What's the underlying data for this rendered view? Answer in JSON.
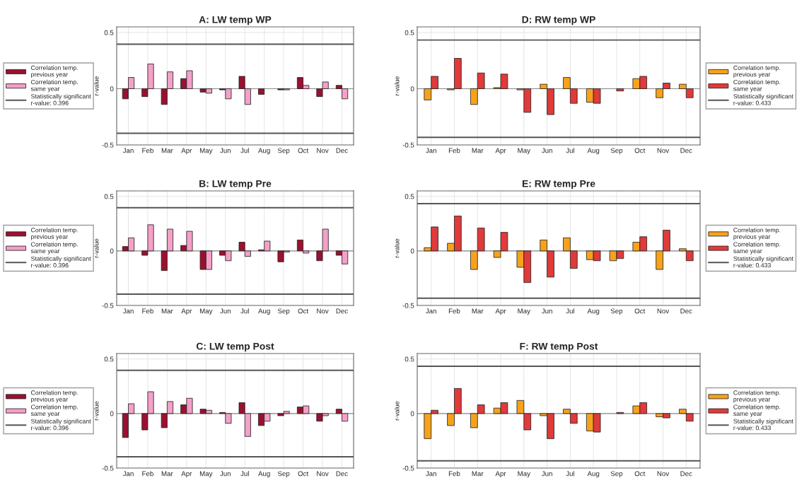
{
  "chart_data": [
    {
      "type": "bar",
      "title": "A: LW temp WP",
      "ylabel": "r-value",
      "categories": [
        "Jan",
        "Feb",
        "Mar",
        "Apr",
        "May",
        "Jun",
        "Jul",
        "Aug",
        "Sep",
        "Oct",
        "Nov",
        "Dec"
      ],
      "ylim": [
        -0.5,
        0.55
      ],
      "yticks": [
        -0.5,
        0,
        0.5
      ],
      "grid": true,
      "legend": "left",
      "series": [
        {
          "name": "Correlation temp.\nprevious year",
          "color": "#9b1030",
          "values": [
            -0.09,
            -0.07,
            -0.14,
            0.09,
            -0.03,
            -0.01,
            0.11,
            -0.05,
            -0.01,
            0.1,
            -0.07,
            0.03
          ]
        },
        {
          "name": "Correlation temp.\nsame year",
          "color": "#f4a0c8",
          "values": [
            0.1,
            0.22,
            0.15,
            0.16,
            -0.04,
            -0.09,
            -0.14,
            0,
            -0.01,
            0.03,
            0.06,
            -0.09
          ]
        }
      ],
      "ref_lines": [
        {
          "axis": "y",
          "value": 0.396,
          "label": "Statistically significant\nr-value: 0.396",
          "color": "#555555"
        },
        {
          "axis": "y",
          "value": -0.396,
          "color": "#555555"
        }
      ]
    },
    {
      "type": "bar",
      "title": "D: RW temp WP",
      "ylabel": "r-value",
      "categories": [
        "Jan",
        "Feb",
        "Mar",
        "Apr",
        "May",
        "Jun",
        "Jul",
        "Aug",
        "Sep",
        "Oct",
        "Nov",
        "Dec"
      ],
      "ylim": [
        -0.5,
        0.55
      ],
      "yticks": [
        -0.5,
        0,
        0.5
      ],
      "grid": true,
      "legend": "right",
      "series": [
        {
          "name": "Correlation temp.\nprevious year",
          "color": "#f7a21b",
          "values": [
            -0.1,
            -0.01,
            -0.14,
            0.01,
            -0.01,
            0.04,
            0.1,
            -0.12,
            0,
            0.09,
            -0.08,
            0.04
          ]
        },
        {
          "name": "Correlation temp.\nsame year",
          "color": "#e03a3a",
          "values": [
            0.11,
            0.27,
            0.14,
            0.13,
            -0.21,
            -0.23,
            -0.13,
            -0.13,
            -0.02,
            0.11,
            0.05,
            -0.08
          ]
        }
      ],
      "ref_lines": [
        {
          "axis": "y",
          "value": 0.433,
          "label": "Statistically significant\nr-value: 0.433",
          "color": "#555555"
        },
        {
          "axis": "y",
          "value": -0.433,
          "color": "#555555"
        }
      ]
    },
    {
      "type": "bar",
      "title": "B: LW temp Pre",
      "ylabel": "r-value",
      "categories": [
        "Jan",
        "Feb",
        "Mar",
        "Apr",
        "May",
        "Jun",
        "Jul",
        "Aug",
        "Sep",
        "Oct",
        "Nov",
        "Dec"
      ],
      "ylim": [
        -0.5,
        0.55
      ],
      "yticks": [
        -0.5,
        0,
        0.5
      ],
      "grid": true,
      "legend": "left",
      "series": [
        {
          "name": "Correlation temp.\nprevious year",
          "color": "#9b1030",
          "values": [
            0.04,
            -0.04,
            -0.18,
            0.05,
            -0.17,
            -0.04,
            0.08,
            0.01,
            -0.1,
            0.1,
            -0.09,
            -0.04
          ]
        },
        {
          "name": "Correlation temp.\nsame year",
          "color": "#f4a0c8",
          "values": [
            0.12,
            0.24,
            0.2,
            0.18,
            -0.17,
            -0.09,
            -0.05,
            0.09,
            -0.01,
            -0.02,
            0.2,
            -0.12
          ]
        }
      ],
      "ref_lines": [
        {
          "axis": "y",
          "value": 0.396,
          "label": "Statistically significant\nr-value: 0.396",
          "color": "#555555"
        },
        {
          "axis": "y",
          "value": -0.396,
          "color": "#555555"
        }
      ]
    },
    {
      "type": "bar",
      "title": "E: RW temp Pre",
      "ylabel": "r-value",
      "categories": [
        "Jan",
        "Feb",
        "Mar",
        "Apr",
        "May",
        "Jun",
        "Jul",
        "Aug",
        "Sep",
        "Oct",
        "Nov",
        "Dec"
      ],
      "ylim": [
        -0.5,
        0.55
      ],
      "yticks": [
        -0.5,
        0,
        0.5
      ],
      "grid": true,
      "legend": "right",
      "series": [
        {
          "name": "Correlation temp.\nprevious year",
          "color": "#f7a21b",
          "values": [
            0.03,
            0.07,
            -0.17,
            -0.06,
            -0.15,
            0.1,
            0.12,
            -0.08,
            -0.09,
            0.08,
            -0.17,
            0.02
          ]
        },
        {
          "name": "Correlation temp.\nsame year",
          "color": "#e03a3a",
          "values": [
            0.22,
            0.32,
            0.21,
            0.17,
            -0.29,
            -0.24,
            -0.16,
            -0.09,
            -0.07,
            0.13,
            0.19,
            -0.09
          ]
        }
      ],
      "ref_lines": [
        {
          "axis": "y",
          "value": 0.433,
          "label": "Statistically significant\nr-value: 0.433",
          "color": "#555555"
        },
        {
          "axis": "y",
          "value": -0.433,
          "color": "#555555"
        }
      ]
    },
    {
      "type": "bar",
      "title": "C: LW temp Post",
      "ylabel": "r-value",
      "categories": [
        "Jan",
        "Feb",
        "Mar",
        "Apr",
        "May",
        "Jun",
        "Jul",
        "Aug",
        "Sep",
        "Oct",
        "Nov",
        "Dec"
      ],
      "ylim": [
        -0.5,
        0.55
      ],
      "yticks": [
        -0.5,
        0,
        0.5
      ],
      "grid": true,
      "legend": "left",
      "series": [
        {
          "name": "Correlation temp.\nprevious year",
          "color": "#9b1030",
          "values": [
            -0.22,
            -0.15,
            -0.13,
            0.08,
            0.04,
            0.01,
            0.1,
            -0.11,
            -0.02,
            0.06,
            -0.07,
            0.04
          ]
        },
        {
          "name": "Correlation temp.\nsame year",
          "color": "#f4a0c8",
          "values": [
            0.09,
            0.2,
            0.11,
            0.14,
            0.03,
            -0.09,
            -0.21,
            -0.07,
            0.02,
            0.07,
            -0.02,
            -0.07
          ]
        }
      ],
      "ref_lines": [
        {
          "axis": "y",
          "value": 0.396,
          "label": "Statistically significant\nr-value: 0.396",
          "color": "#555555"
        },
        {
          "axis": "y",
          "value": -0.396,
          "color": "#555555"
        }
      ]
    },
    {
      "type": "bar",
      "title": "F: RW temp Post",
      "ylabel": "r-value",
      "categories": [
        "Jan",
        "Feb",
        "Mar",
        "Apr",
        "May",
        "Jun",
        "Jul",
        "Aug",
        "Sep",
        "Oct",
        "Nov",
        "Dec"
      ],
      "ylim": [
        -0.5,
        0.55
      ],
      "yticks": [
        -0.5,
        0,
        0.5
      ],
      "grid": true,
      "legend": "right",
      "series": [
        {
          "name": "Correlation temp.\nprevious year",
          "color": "#f7a21b",
          "values": [
            -0.23,
            -0.11,
            -0.13,
            0.05,
            0.12,
            -0.02,
            0.04,
            -0.16,
            0,
            0.07,
            -0.03,
            0.04
          ]
        },
        {
          "name": "Correlation temp.\nsame year",
          "color": "#e03a3a",
          "values": [
            0.03,
            0.23,
            0.08,
            0.1,
            -0.15,
            -0.23,
            -0.09,
            -0.17,
            0.01,
            0.1,
            -0.04,
            -0.07
          ]
        }
      ],
      "ref_lines": [
        {
          "axis": "y",
          "value": 0.433,
          "label": "Statistically significant\nr-value: 0.433",
          "color": "#555555"
        },
        {
          "axis": "y",
          "value": -0.433,
          "color": "#555555"
        }
      ]
    }
  ]
}
